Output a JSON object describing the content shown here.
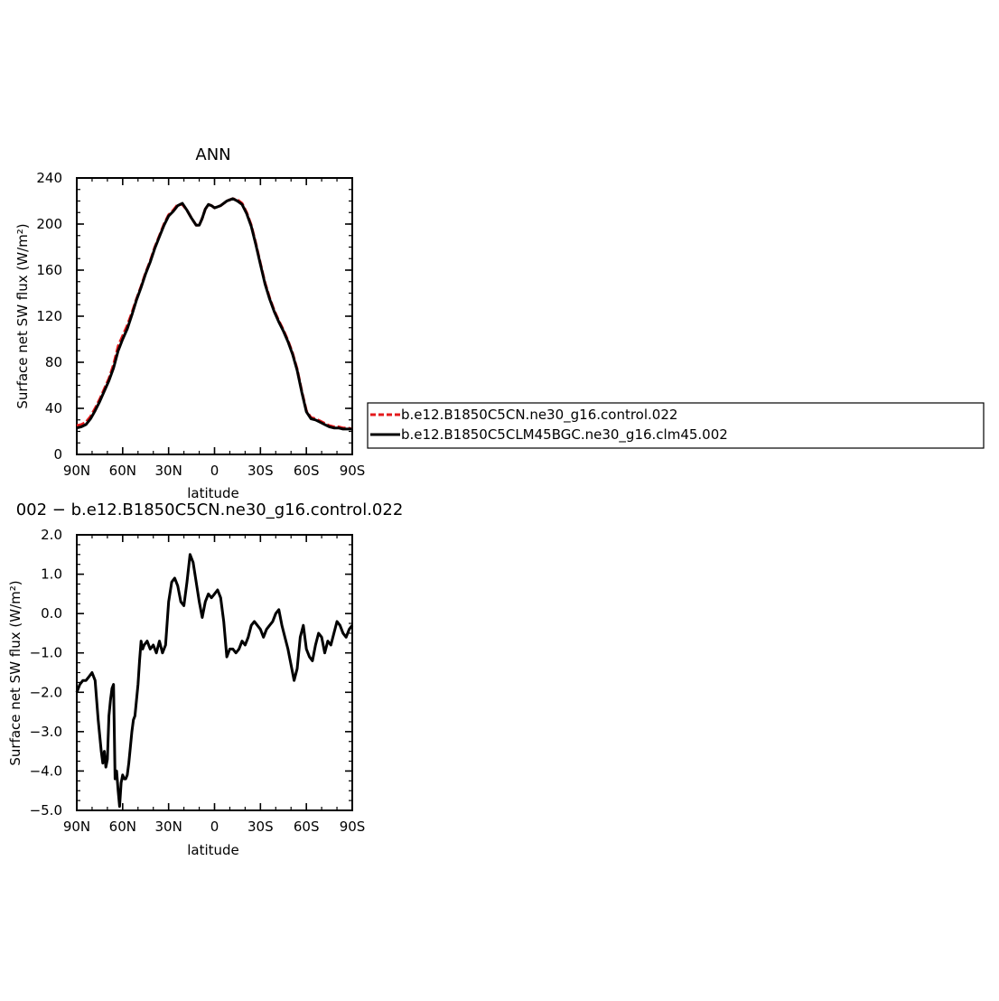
{
  "chart_data": [
    {
      "type": "line",
      "title": "ANN",
      "xlabel": "latitude",
      "ylabel": "Surface net SW flux (W/m²)",
      "xlim": [
        90,
        -90
      ],
      "ylim": [
        0,
        240
      ],
      "x_tick_values": [
        90,
        60,
        30,
        0,
        -30,
        -60,
        -90
      ],
      "x_tick_labels": [
        "90N",
        "60N",
        "30N",
        "0",
        "30S",
        "60S",
        "90S"
      ],
      "y_tick_values": [
        0,
        40,
        80,
        120,
        160,
        200,
        240
      ],
      "y_tick_labels": [
        "0",
        "40",
        "80",
        "120",
        "160",
        "200",
        "240"
      ],
      "legend_position": "right",
      "x": [
        90,
        87,
        84,
        81,
        78,
        75,
        72,
        69,
        66,
        63,
        60,
        57,
        54,
        51,
        48,
        45,
        42,
        39,
        36,
        33,
        30,
        27,
        24,
        21,
        18,
        15,
        12,
        10,
        8,
        6,
        4,
        2,
        0,
        -2,
        -4,
        -6,
        -8,
        -10,
        -12,
        -15,
        -18,
        -21,
        -24,
        -27,
        -30,
        -33,
        -36,
        -39,
        -42,
        -45,
        -48,
        -51,
        -54,
        -57,
        -60,
        -63,
        -66,
        -69,
        -72,
        -75,
        -78,
        -81,
        -84,
        -87,
        -90
      ],
      "series": [
        {
          "name": "b.e12.B1850C5CN.ne30_g16.control.022",
          "color": "#e41a1c",
          "dash": "dashed",
          "values": [
            25,
            26,
            28,
            33,
            40,
            48,
            57,
            66,
            78,
            94,
            103,
            112,
            123,
            135,
            146,
            158,
            168,
            180,
            190,
            200,
            208,
            212,
            217,
            217,
            212,
            205,
            199,
            199,
            205,
            213,
            217,
            216,
            214,
            215,
            216,
            218,
            220,
            221,
            222,
            221,
            218,
            210,
            199,
            183,
            166,
            149,
            136,
            125,
            116,
            108,
            99,
            88,
            74,
            55,
            38,
            32,
            31,
            29,
            27,
            25,
            24,
            24,
            23,
            23,
            22
          ]
        },
        {
          "name": "b.e12.B1850C5CLM45BGC.ne30_g16.clm45.002",
          "color": "#000000",
          "dash": "solid",
          "values": [
            23,
            24,
            26,
            31,
            38,
            46,
            55,
            64,
            75,
            90,
            100,
            109,
            121,
            134,
            145,
            157,
            167,
            179,
            189,
            199,
            207,
            211,
            216,
            218,
            212,
            205,
            199,
            199,
            205,
            213,
            217,
            216,
            214,
            215,
            216,
            218,
            220,
            221,
            222,
            220,
            217,
            209,
            198,
            182,
            165,
            148,
            135,
            124,
            115,
            107,
            98,
            87,
            73,
            54,
            37,
            31,
            30,
            28,
            26,
            24,
            23,
            23,
            22,
            22,
            22
          ]
        }
      ]
    },
    {
      "type": "line",
      "title": "002 − b.e12.B1850C5CN.ne30_g16.control.022",
      "xlabel": "latitude",
      "ylabel": "Surface net SW flux (W/m²)",
      "xlim": [
        90,
        -90
      ],
      "ylim": [
        -5.0,
        2.0
      ],
      "x_tick_values": [
        90,
        60,
        30,
        0,
        -30,
        -60,
        -90
      ],
      "x_tick_labels": [
        "90N",
        "60N",
        "30N",
        "0",
        "30S",
        "60S",
        "90S"
      ],
      "y_tick_values": [
        2.0,
        1.0,
        0.0,
        -1.0,
        -2.0,
        -3.0,
        -4.0,
        -5.0
      ],
      "y_tick_labels": [
        "2.0",
        "1.0",
        "0.0",
        "−1.0",
        "−2.0",
        "−3.0",
        "−4.0",
        "−5.0"
      ],
      "x": [
        90,
        88,
        86,
        84,
        82,
        80,
        78,
        77,
        76,
        75,
        74,
        73,
        72,
        71,
        70,
        69,
        68,
        67,
        66,
        65,
        64,
        63,
        62,
        61,
        60,
        59,
        58,
        57,
        56,
        55,
        54,
        53,
        52,
        51,
        50,
        49,
        48,
        47,
        46,
        44,
        42,
        40,
        38,
        36,
        34,
        32,
        30,
        28,
        26,
        24,
        22,
        20,
        18,
        16,
        14,
        12,
        10,
        8,
        6,
        4,
        2,
        0,
        -2,
        -4,
        -6,
        -8,
        -10,
        -12,
        -14,
        -16,
        -18,
        -20,
        -22,
        -24,
        -26,
        -28,
        -30,
        -32,
        -34,
        -36,
        -38,
        -40,
        -42,
        -44,
        -46,
        -48,
        -50,
        -52,
        -54,
        -56,
        -58,
        -60,
        -62,
        -64,
        -66,
        -68,
        -70,
        -72,
        -74,
        -76,
        -78,
        -80,
        -82,
        -84,
        -86,
        -88,
        -90
      ],
      "series": [
        {
          "name": "",
          "color": "#000000",
          "values": [
            -2.0,
            -1.8,
            -1.7,
            -1.7,
            -1.6,
            -1.5,
            -1.7,
            -2.2,
            -2.7,
            -3.1,
            -3.5,
            -3.8,
            -3.5,
            -3.9,
            -3.7,
            -2.6,
            -2.2,
            -1.9,
            -1.8,
            -4.2,
            -4.0,
            -4.5,
            -4.9,
            -4.3,
            -4.1,
            -4.2,
            -4.2,
            -4.1,
            -3.8,
            -3.4,
            -3.0,
            -2.7,
            -2.6,
            -2.2,
            -1.8,
            -1.2,
            -0.7,
            -0.9,
            -0.8,
            -0.7,
            -0.9,
            -0.8,
            -1.0,
            -0.7,
            -1.0,
            -0.8,
            0.3,
            0.8,
            0.9,
            0.7,
            0.3,
            0.2,
            0.8,
            1.5,
            1.3,
            0.8,
            0.3,
            -0.1,
            0.3,
            0.5,
            0.4,
            0.5,
            0.6,
            0.4,
            -0.2,
            -1.1,
            -0.9,
            -0.9,
            -1.0,
            -0.9,
            -0.7,
            -0.8,
            -0.6,
            -0.3,
            -0.2,
            -0.3,
            -0.4,
            -0.6,
            -0.4,
            -0.3,
            -0.2,
            0.0,
            0.1,
            -0.3,
            -0.6,
            -0.9,
            -1.3,
            -1.7,
            -1.4,
            -0.6,
            -0.3,
            -0.9,
            -1.1,
            -1.2,
            -0.8,
            -0.5,
            -0.6,
            -1.0,
            -0.7,
            -0.8,
            -0.5,
            -0.2,
            -0.3,
            -0.5,
            -0.6,
            -0.4,
            -0.3
          ]
        }
      ]
    }
  ]
}
